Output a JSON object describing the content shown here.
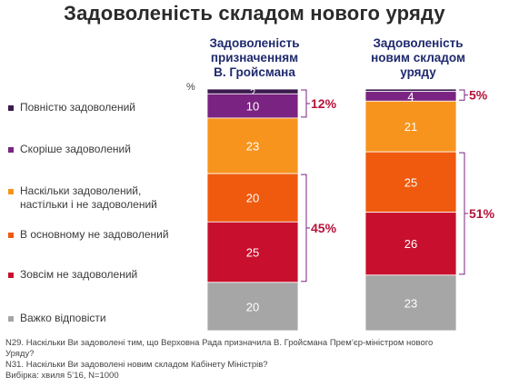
{
  "title": "Задоволеність складом нового уряду",
  "percent_sign": "%",
  "columns": [
    {
      "title": "Задоволеність\nпризначенням\nВ. Гройсмана"
    },
    {
      "title": "Задоволеність\nновим  складом\nуряду"
    }
  ],
  "legend": [
    {
      "label": "Повністю задоволений",
      "color": "#3b1a4d"
    },
    {
      "label": "Скоріше задоволений",
      "color": "#7b2382"
    },
    {
      "label": "Наскільки задоволений,\nнастільки і не задоволений",
      "color": "#f7941d"
    },
    {
      "label": "В основному не задоволений",
      "color": "#ef5a0e"
    },
    {
      "label": "Зовсім  не задоволений",
      "color": "#c8102e"
    },
    {
      "label": "Важко відповісти",
      "color": "#a6a6a6"
    }
  ],
  "footer": {
    "line1": "N29. Наскільки Ви задоволені тим, що Верховна Рада призначила В. Гройсмана Прем’єр-міністром нового",
    "line2": "Уряду?",
    "line3": "N31. Наскільки Ви задоволені новим складом Кабінету Міністрів?",
    "line4": "Вибірка: хвиля 5’16, N=1000"
  },
  "chart_data": {
    "type": "bar",
    "stacked": true,
    "categories": [
      "Задоволеність призначенням В. Гройсмана",
      "Задоволеність новим складом уряду"
    ],
    "series": [
      {
        "name": "Повністю задоволений",
        "values": [
          2,
          1
        ],
        "labels": [
          "2",
          ""
        ]
      },
      {
        "name": "Скоріше задоволений",
        "values": [
          10,
          4
        ],
        "labels": [
          "10",
          "4"
        ]
      },
      {
        "name": "Наскільки задоволений, настільки і не задоволений",
        "values": [
          23,
          21
        ],
        "labels": [
          "23",
          "21"
        ]
      },
      {
        "name": "В основному не задоволений",
        "values": [
          20,
          25
        ],
        "labels": [
          "20",
          "25"
        ]
      },
      {
        "name": "Зовсім  не задоволений",
        "values": [
          25,
          26
        ],
        "labels": [
          "25",
          "26"
        ]
      },
      {
        "name": "Важко відповісти",
        "values": [
          20,
          23
        ],
        "labels": [
          "20",
          "23"
        ]
      }
    ],
    "annotations": [
      {
        "column": 0,
        "from_series": 0,
        "to_series": 1,
        "text": "12%"
      },
      {
        "column": 0,
        "from_series": 3,
        "to_series": 4,
        "text": "45%"
      },
      {
        "column": 1,
        "from_series": 0,
        "to_series": 1,
        "text": "5%"
      },
      {
        "column": 1,
        "from_series": 3,
        "to_series": 4,
        "text": "51%"
      }
    ],
    "ylim": [
      0,
      100
    ]
  }
}
